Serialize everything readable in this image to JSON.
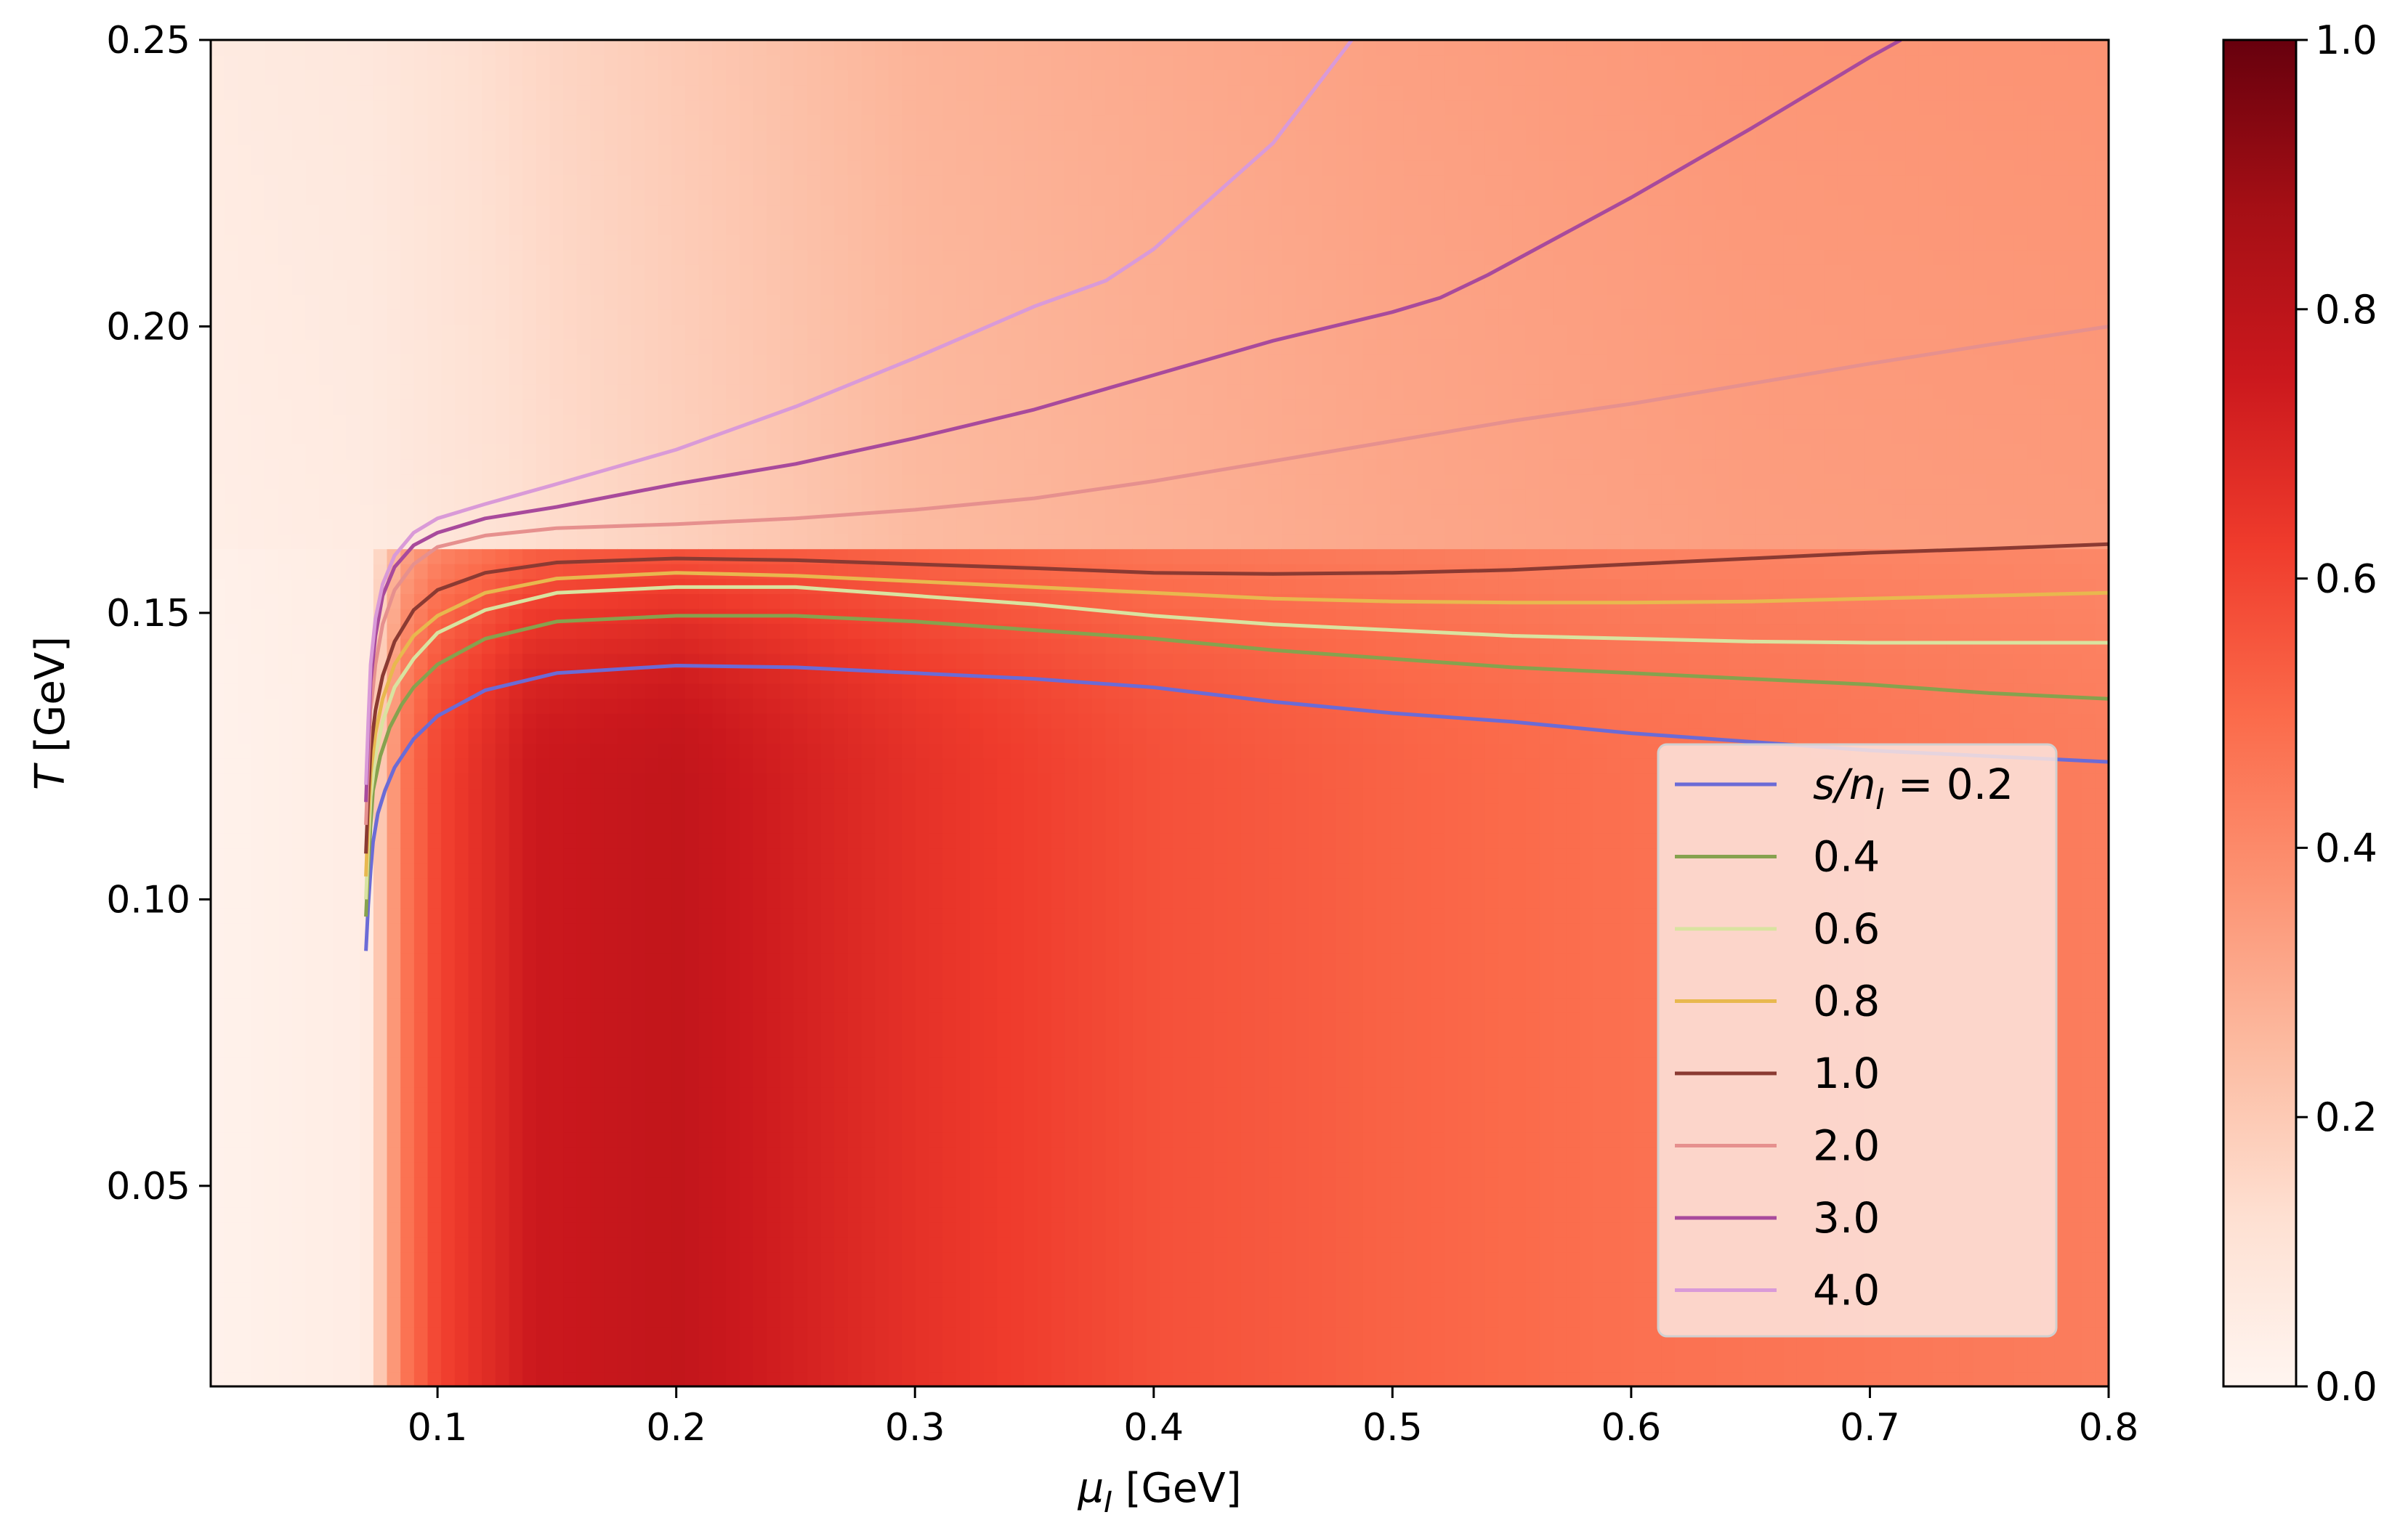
{
  "chart_data": {
    "type": "heatmap",
    "title": "",
    "xlabel": {
      "main": "μ",
      "sub": "I",
      "unit": " [GeV]"
    },
    "ylabel": {
      "main": "T",
      "unit": " [GeV]"
    },
    "xlim": [
      0.005,
      0.8
    ],
    "ylim": [
      0.015,
      0.25
    ],
    "x_ticks": [
      0.1,
      0.2,
      0.3,
      0.4,
      0.5,
      0.6,
      0.7,
      0.8
    ],
    "x_tick_labels": [
      "0.1",
      "0.2",
      "0.3",
      "0.4",
      "0.5",
      "0.6",
      "0.7",
      "0.8"
    ],
    "y_ticks": [
      0.05,
      0.1,
      0.15,
      0.2,
      0.25
    ],
    "y_tick_labels": [
      "0.05",
      "0.10",
      "0.15",
      "0.20",
      "0.25"
    ],
    "colorbar": {
      "colormap": "Reds",
      "range": [
        0.0,
        1.0
      ],
      "ticks": [
        0.0,
        0.2,
        0.4,
        0.6,
        0.8,
        1.0
      ],
      "tick_labels": [
        "0.0",
        "0.2",
        "0.4",
        "0.6",
        "0.8",
        "1.0"
      ],
      "colors": [
        "#fff5f0",
        "#fee0d2",
        "#fcbba1",
        "#fc9272",
        "#fb6a4a",
        "#ef3b2c",
        "#cb181d",
        "#a50f15",
        "#67000d"
      ]
    },
    "heatmap_field": {
      "mu_threshold": 0.07,
      "T_transition": 0.16,
      "low_T_profile": [
        [
          0.005,
          0.02
        ],
        [
          0.07,
          0.05
        ],
        [
          0.085,
          0.45
        ],
        [
          0.1,
          0.6
        ],
        [
          0.14,
          0.75
        ],
        [
          0.2,
          0.78
        ],
        [
          0.3,
          0.66
        ],
        [
          0.4,
          0.57
        ],
        [
          0.5,
          0.52
        ],
        [
          0.6,
          0.48
        ],
        [
          0.7,
          0.46
        ],
        [
          0.8,
          0.44
        ]
      ],
      "high_T_profile": [
        [
          0.005,
          0.04
        ],
        [
          0.07,
          0.06
        ],
        [
          0.15,
          0.14
        ],
        [
          0.3,
          0.25
        ],
        [
          0.5,
          0.31
        ],
        [
          0.65,
          0.34
        ],
        [
          0.8,
          0.35
        ]
      ]
    },
    "legend": {
      "placement": "lower-right",
      "title_prefix": "s/n",
      "title_sub": "I",
      "title_suffix": " = "
    },
    "series": [
      {
        "name": "0.2",
        "color": "#6b6bd6",
        "points": [
          [
            0.07,
            0.091
          ],
          [
            0.071,
            0.099
          ],
          [
            0.072,
            0.105
          ],
          [
            0.073,
            0.11
          ],
          [
            0.075,
            0.115
          ],
          [
            0.078,
            0.119
          ],
          [
            0.082,
            0.123
          ],
          [
            0.09,
            0.128
          ],
          [
            0.1,
            0.132
          ],
          [
            0.12,
            0.1365
          ],
          [
            0.15,
            0.1395
          ],
          [
            0.2,
            0.1408
          ],
          [
            0.25,
            0.1405
          ],
          [
            0.3,
            0.1395
          ],
          [
            0.35,
            0.1385
          ],
          [
            0.4,
            0.137
          ],
          [
            0.45,
            0.1345
          ],
          [
            0.5,
            0.1325
          ],
          [
            0.55,
            0.131
          ],
          [
            0.6,
            0.129
          ],
          [
            0.65,
            0.1275
          ],
          [
            0.7,
            0.126
          ],
          [
            0.75,
            0.125
          ],
          [
            0.8,
            0.124
          ]
        ]
      },
      {
        "name": "0.4",
        "color": "#86a24e",
        "points": [
          [
            0.07,
            0.097
          ],
          [
            0.071,
            0.106
          ],
          [
            0.072,
            0.113
          ],
          [
            0.073,
            0.119
          ],
          [
            0.076,
            0.125
          ],
          [
            0.08,
            0.13
          ],
          [
            0.085,
            0.134
          ],
          [
            0.09,
            0.137
          ],
          [
            0.1,
            0.141
          ],
          [
            0.12,
            0.1455
          ],
          [
            0.15,
            0.1485
          ],
          [
            0.2,
            0.1495
          ],
          [
            0.25,
            0.1495
          ],
          [
            0.3,
            0.1485
          ],
          [
            0.35,
            0.147
          ],
          [
            0.4,
            0.1455
          ],
          [
            0.45,
            0.1435
          ],
          [
            0.5,
            0.142
          ],
          [
            0.55,
            0.1405
          ],
          [
            0.6,
            0.1395
          ],
          [
            0.65,
            0.1385
          ],
          [
            0.7,
            0.1375
          ],
          [
            0.75,
            0.136
          ],
          [
            0.8,
            0.135
          ]
        ]
      },
      {
        "name": "0.6",
        "color": "#d9e3a0",
        "points": [
          [
            0.07,
            0.1
          ],
          [
            0.071,
            0.11
          ],
          [
            0.072,
            0.118
          ],
          [
            0.074,
            0.125
          ],
          [
            0.077,
            0.131
          ],
          [
            0.082,
            0.137
          ],
          [
            0.09,
            0.142
          ],
          [
            0.1,
            0.1465
          ],
          [
            0.12,
            0.1505
          ],
          [
            0.15,
            0.1535
          ],
          [
            0.2,
            0.1545
          ],
          [
            0.25,
            0.1545
          ],
          [
            0.3,
            0.153
          ],
          [
            0.35,
            0.1515
          ],
          [
            0.4,
            0.1495
          ],
          [
            0.45,
            0.148
          ],
          [
            0.5,
            0.147
          ],
          [
            0.55,
            0.146
          ],
          [
            0.6,
            0.1455
          ],
          [
            0.65,
            0.145
          ],
          [
            0.7,
            0.1448
          ],
          [
            0.75,
            0.1448
          ],
          [
            0.8,
            0.1448
          ]
        ]
      },
      {
        "name": "0.8",
        "color": "#e8b84e",
        "points": [
          [
            0.07,
            0.104
          ],
          [
            0.071,
            0.114
          ],
          [
            0.072,
            0.122
          ],
          [
            0.074,
            0.129
          ],
          [
            0.077,
            0.135
          ],
          [
            0.082,
            0.141
          ],
          [
            0.09,
            0.146
          ],
          [
            0.1,
            0.1495
          ],
          [
            0.12,
            0.1535
          ],
          [
            0.15,
            0.156
          ],
          [
            0.2,
            0.157
          ],
          [
            0.25,
            0.1565
          ],
          [
            0.3,
            0.1555
          ],
          [
            0.35,
            0.1545
          ],
          [
            0.4,
            0.1535
          ],
          [
            0.45,
            0.1525
          ],
          [
            0.5,
            0.152
          ],
          [
            0.55,
            0.1518
          ],
          [
            0.6,
            0.1518
          ],
          [
            0.65,
            0.152
          ],
          [
            0.7,
            0.1525
          ],
          [
            0.75,
            0.153
          ],
          [
            0.8,
            0.1535
          ]
        ]
      },
      {
        "name": "1.0",
        "color": "#8b3a32",
        "points": [
          [
            0.07,
            0.108
          ],
          [
            0.071,
            0.118
          ],
          [
            0.072,
            0.126
          ],
          [
            0.074,
            0.133
          ],
          [
            0.077,
            0.139
          ],
          [
            0.082,
            0.145
          ],
          [
            0.09,
            0.1505
          ],
          [
            0.1,
            0.154
          ],
          [
            0.12,
            0.157
          ],
          [
            0.15,
            0.1588
          ],
          [
            0.2,
            0.1595
          ],
          [
            0.25,
            0.1592
          ],
          [
            0.3,
            0.1585
          ],
          [
            0.35,
            0.1578
          ],
          [
            0.4,
            0.157
          ],
          [
            0.45,
            0.1568
          ],
          [
            0.5,
            0.157
          ],
          [
            0.55,
            0.1575
          ],
          [
            0.6,
            0.1585
          ],
          [
            0.65,
            0.1595
          ],
          [
            0.7,
            0.1605
          ],
          [
            0.75,
            0.1612
          ],
          [
            0.8,
            0.162
          ]
        ]
      },
      {
        "name": "2.0",
        "color": "#e6908e",
        "points": [
          [
            0.07,
            0.113
          ],
          [
            0.071,
            0.124
          ],
          [
            0.072,
            0.133
          ],
          [
            0.074,
            0.141
          ],
          [
            0.077,
            0.148
          ],
          [
            0.082,
            0.154
          ],
          [
            0.09,
            0.1585
          ],
          [
            0.1,
            0.1615
          ],
          [
            0.12,
            0.1635
          ],
          [
            0.15,
            0.1648
          ],
          [
            0.2,
            0.1655
          ],
          [
            0.25,
            0.1665
          ],
          [
            0.3,
            0.168
          ],
          [
            0.35,
            0.17
          ],
          [
            0.4,
            0.173
          ],
          [
            0.45,
            0.1765
          ],
          [
            0.5,
            0.18
          ],
          [
            0.55,
            0.1835
          ],
          [
            0.6,
            0.1865
          ],
          [
            0.65,
            0.19
          ],
          [
            0.7,
            0.1935
          ],
          [
            0.75,
            0.1968
          ],
          [
            0.8,
            0.2
          ]
        ]
      },
      {
        "name": "3.0",
        "color": "#a84a9c",
        "points": [
          [
            0.07,
            0.117
          ],
          [
            0.071,
            0.128
          ],
          [
            0.072,
            0.138
          ],
          [
            0.074,
            0.146
          ],
          [
            0.077,
            0.153
          ],
          [
            0.082,
            0.158
          ],
          [
            0.09,
            0.1618
          ],
          [
            0.1,
            0.164
          ],
          [
            0.12,
            0.1665
          ],
          [
            0.15,
            0.1685
          ],
          [
            0.2,
            0.1725
          ],
          [
            0.25,
            0.176
          ],
          [
            0.3,
            0.1805
          ],
          [
            0.35,
            0.1855
          ],
          [
            0.4,
            0.1915
          ],
          [
            0.45,
            0.1975
          ],
          [
            0.5,
            0.2025
          ],
          [
            0.52,
            0.205
          ],
          [
            0.54,
            0.209
          ],
          [
            0.6,
            0.2225
          ],
          [
            0.65,
            0.2345
          ],
          [
            0.7,
            0.247
          ],
          [
            0.713,
            0.25
          ]
        ]
      },
      {
        "name": "4.0",
        "color": "#d99ad8",
        "points": [
          [
            0.07,
            0.12
          ],
          [
            0.071,
            0.131
          ],
          [
            0.072,
            0.141
          ],
          [
            0.074,
            0.149
          ],
          [
            0.077,
            0.155
          ],
          [
            0.082,
            0.16
          ],
          [
            0.09,
            0.164
          ],
          [
            0.1,
            0.1665
          ],
          [
            0.12,
            0.169
          ],
          [
            0.15,
            0.1725
          ],
          [
            0.2,
            0.1785
          ],
          [
            0.25,
            0.186
          ],
          [
            0.3,
            0.1945
          ],
          [
            0.35,
            0.2035
          ],
          [
            0.38,
            0.208
          ],
          [
            0.4,
            0.2135
          ],
          [
            0.45,
            0.232
          ],
          [
            0.483,
            0.25
          ]
        ]
      }
    ]
  }
}
